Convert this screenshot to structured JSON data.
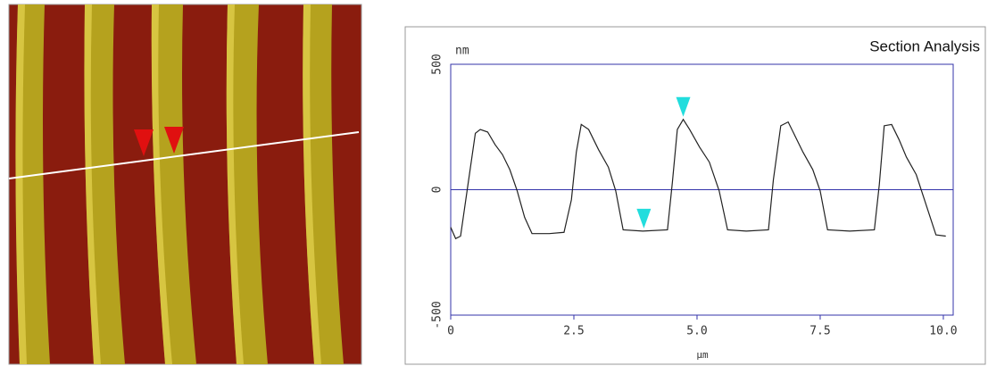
{
  "chart_data": {
    "type": "line",
    "title": "Section Analysis",
    "y_label": "nm",
    "x_label": "μm",
    "xlim": [
      0,
      10.2
    ],
    "ylim": [
      -500,
      500
    ],
    "xticks": [
      0,
      2.5,
      {
        "value": 5,
        "label": "5.0"
      },
      7.5,
      {
        "value": 10,
        "label": "10.0"
      }
    ],
    "yticks": [
      -500,
      0,
      500
    ],
    "series": [
      {
        "color": "#222222",
        "x": [
          0,
          0.1,
          0.2,
          0.35,
          0.5,
          0.6,
          0.75,
          0.9,
          1.05,
          1.2,
          1.35,
          1.5,
          1.65,
          2.0,
          2.3,
          2.45,
          2.55,
          2.65,
          2.8,
          3.0,
          3.2,
          3.35,
          3.5,
          3.9,
          4.4,
          4.5,
          4.6,
          4.72,
          4.85,
          5.05,
          5.25,
          5.45,
          5.62,
          6.0,
          6.45,
          6.55,
          6.7,
          6.85,
          7.0,
          7.15,
          7.35,
          7.5,
          7.65,
          8.1,
          8.6,
          8.7,
          8.8,
          8.95,
          9.1,
          9.25,
          9.45,
          9.6,
          9.85,
          10.05
        ],
        "values": [
          -150,
          -195,
          -185,
          20,
          225,
          240,
          230,
          180,
          140,
          80,
          -5,
          -110,
          -175,
          -175,
          -170,
          -40,
          150,
          260,
          240,
          160,
          90,
          -5,
          -160,
          -165,
          -160,
          30,
          240,
          280,
          240,
          170,
          110,
          -5,
          -160,
          -165,
          -160,
          40,
          255,
          270,
          210,
          150,
          80,
          -5,
          -160,
          -165,
          -160,
          20,
          255,
          260,
          200,
          130,
          60,
          -30,
          -180,
          -185
        ]
      }
    ],
    "cursors": {
      "color": "#22dddd",
      "x": [
        3.92,
        4.72
      ],
      "y": [
        -115,
        330
      ]
    },
    "axis_color": "#3333aa"
  }
}
